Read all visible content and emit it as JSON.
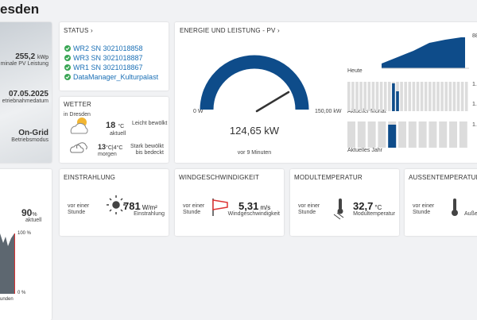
{
  "header": {
    "title": "esden"
  },
  "plant": {
    "power": "255,2",
    "power_unit": "kWp",
    "power_label": "minale PV Leistung",
    "date": "07.05.2025",
    "date_label": "etriebnahmedatum",
    "mode": "On-Grid",
    "mode_label": "Betriebsmodus"
  },
  "status": {
    "title": "STATUS",
    "items": [
      "WR2 SN 3021018858",
      "WR3 SN 3021018887",
      "WR1 SN 3021018867",
      "DataManager_Kulturpalast"
    ]
  },
  "weather": {
    "title": "WETTER",
    "location": "in Dresden",
    "now_temp": "18",
    "now_unit": "°C",
    "now_label": "aktuell",
    "now_desc_1": "Leicht bewölkt",
    "tomorrow_max": "13",
    "tomorrow_sep": "°C|4",
    "tomorrow_unit": "°C",
    "tomorrow_label": "morgen",
    "tomorrow_desc_1": "Stark bewölkt",
    "tomorrow_desc_2": "bis bedeckt"
  },
  "energy": {
    "title": "ENERGIE UND LEISTUNG - PV",
    "gauge_min": "0 W",
    "gauge_max": "150,00 kW",
    "value": "124,65 kW",
    "time": "vor 9 Minuten",
    "today": "Heute",
    "month": "Aktueller Monat",
    "year": "Aktuelles Jahr",
    "right_labels": [
      "88",
      "1.",
      "1.",
      "1."
    ]
  },
  "share": {
    "value": "90",
    "unit": "%",
    "label": "aktuell",
    "axis_top": "100 %",
    "axis_bottom": "0 %",
    "x_label": "unden"
  },
  "cards": [
    {
      "title": "EINSTRAHLUNG",
      "when_1": "vor einer",
      "when_2": "Stunde",
      "value": "781",
      "unit": "W/m²",
      "label": "Einstrahlung"
    },
    {
      "title": "WINDGESCHWINDIGKEIT",
      "when_1": "vor einer",
      "when_2": "Stunde",
      "value": "5,31",
      "unit": "m/s",
      "label": "Windgeschwindigkeit"
    },
    {
      "title": "MODULTEMPERATUR",
      "when_1": "vor einer",
      "when_2": "Stunde",
      "value": "32,7",
      "unit": "°C",
      "label": "Modultemperatur"
    },
    {
      "title": "AUSSENTEMPERATUR",
      "when_1": "vor einer",
      "when_2": "Stunde",
      "label": "Auße"
    }
  ]
}
